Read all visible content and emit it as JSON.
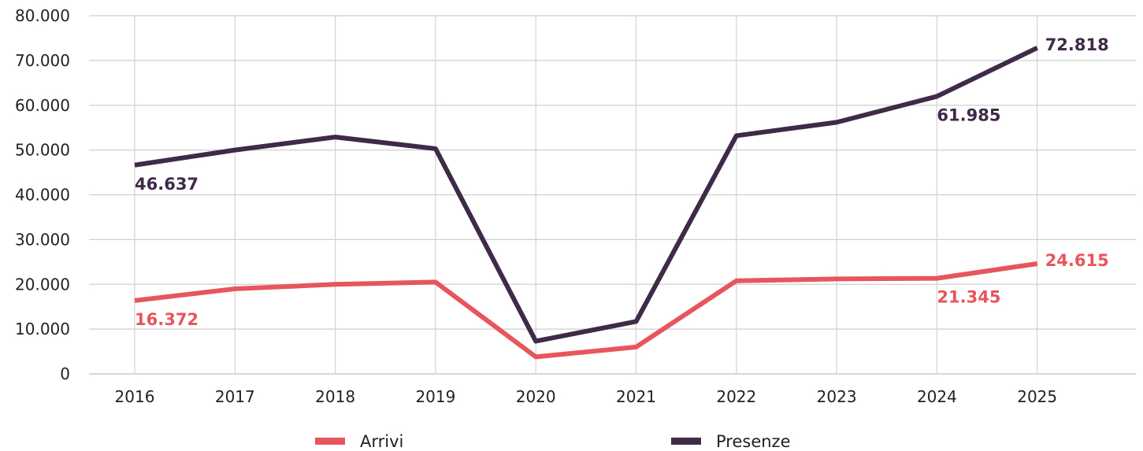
{
  "chart_data": {
    "type": "line",
    "title": "",
    "xlabel": "",
    "ylabel": "",
    "categories": [
      "2016",
      "2017",
      "2018",
      "2019",
      "2020",
      "2021",
      "2022",
      "2023",
      "2024",
      "2025"
    ],
    "ylim": [
      0,
      80000
    ],
    "yticks": [
      {
        "value": 0,
        "label": "0"
      },
      {
        "value": 10000,
        "label": "10.000"
      },
      {
        "value": 20000,
        "label": "20.000"
      },
      {
        "value": 30000,
        "label": "30.000"
      },
      {
        "value": 40000,
        "label": "40.000"
      },
      {
        "value": 50000,
        "label": "50.000"
      },
      {
        "value": 60000,
        "label": "60.000"
      },
      {
        "value": 70000,
        "label": "70.000"
      },
      {
        "value": 80000,
        "label": "80.000"
      }
    ],
    "grid": true,
    "legend_position": "bottom",
    "series": [
      {
        "name": "Arrivi",
        "color": "#e8555c",
        "values": [
          16372,
          19000,
          20000,
          20500,
          3800,
          6000,
          20800,
          21200,
          21345,
          24615
        ],
        "labels": [
          {
            "index": 0,
            "text": "16.372",
            "placement": "below"
          },
          {
            "index": 8,
            "text": "21.345",
            "placement": "below"
          },
          {
            "index": 9,
            "text": "24.615",
            "placement": "right"
          }
        ]
      },
      {
        "name": "Presenze",
        "color": "#3f2a47",
        "values": [
          46637,
          50000,
          52900,
          50300,
          7300,
          11700,
          53200,
          56200,
          61985,
          72818
        ],
        "labels": [
          {
            "index": 0,
            "text": "46.637",
            "placement": "below"
          },
          {
            "index": 8,
            "text": "61.985",
            "placement": "below"
          },
          {
            "index": 9,
            "text": "72.818",
            "placement": "right"
          }
        ]
      }
    ]
  }
}
